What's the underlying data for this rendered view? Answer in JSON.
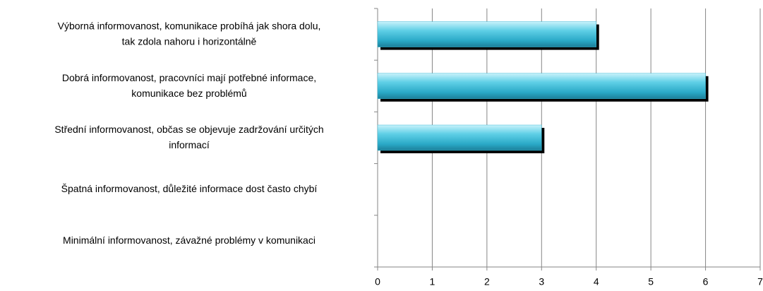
{
  "chart_data": {
    "type": "barh",
    "categories": [
      "Výborná informovanost, komunikace probíhá jak shora dolu,\ntak zdola nahoru i horizontálně",
      "Dobrá informovanost, pracovníci mají potřebné informace,\nkomunikace bez problémů",
      "Střední informovanost, občas se objevuje zadržování určitých\ninformací",
      "Špatná informovanost, důležité informace dost často chybí",
      "Minimální informovanost, závažné problémy v komunikaci"
    ],
    "values": [
      4,
      6,
      3,
      0,
      0
    ],
    "color": "#3bbad6",
    "xlim": [
      0,
      7
    ],
    "xticks": [
      0,
      1,
      2,
      3,
      4,
      5,
      6,
      7
    ],
    "grid": true
  }
}
